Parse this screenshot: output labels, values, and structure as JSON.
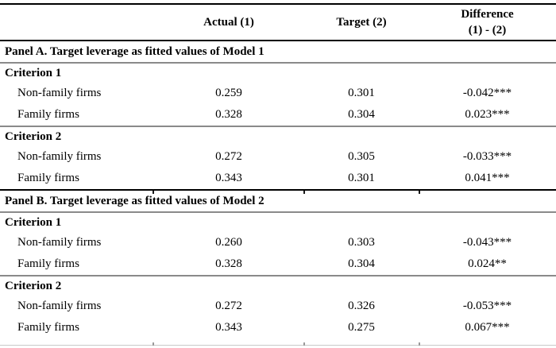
{
  "header": {
    "col_actual": "Actual (1)",
    "col_target": "Target (2)",
    "col_diff_line1": "Difference",
    "col_diff_line2": "(1) - (2)"
  },
  "panels": [
    {
      "title": "Panel A. Target leverage as fitted values of Model 1",
      "criteria": [
        {
          "label": "Criterion 1",
          "rows": [
            {
              "label": "Non-family firms",
              "actual": "0.259",
              "target": "0.301",
              "difference": "-0.042***"
            },
            {
              "label": "Family firms",
              "actual": "0.328",
              "target": "0.304",
              "difference": "0.023***"
            }
          ]
        },
        {
          "label": "Criterion 2",
          "rows": [
            {
              "label": "Non-family firms",
              "actual": "0.272",
              "target": "0.305",
              "difference": "-0.033***"
            },
            {
              "label": "Family firms",
              "actual": "0.343",
              "target": "0.301",
              "difference": "0.041***"
            }
          ]
        }
      ]
    },
    {
      "title": "Panel B. Target leverage as fitted values of Model 2",
      "criteria": [
        {
          "label": "Criterion 1",
          "rows": [
            {
              "label": "Non-family firms",
              "actual": "0.260",
              "target": "0.303",
              "difference": "-0.043***"
            },
            {
              "label": "Family firms",
              "actual": "0.328",
              "target": "0.304",
              "difference": "0.024**"
            }
          ]
        },
        {
          "label": "Criterion 2",
          "rows": [
            {
              "label": "Non-family firms",
              "actual": "0.272",
              "target": "0.326",
              "difference": "-0.053***"
            },
            {
              "label": "Family firms",
              "actual": "0.343",
              "target": "0.275",
              "difference": "0.067***"
            }
          ]
        }
      ]
    }
  ],
  "colors": {
    "text": "#000000",
    "rule_black": "#000000",
    "rule_gray": "#8a8a8a",
    "rule_bottom": "#c9c9c9",
    "background": "#ffffff"
  }
}
